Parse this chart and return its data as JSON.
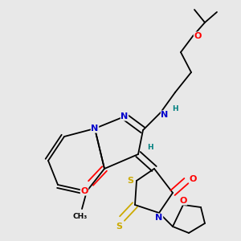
{
  "bg_color": "#e8e8e8",
  "atom_colors": {
    "C": "#000000",
    "N": "#0000cc",
    "O": "#ff0000",
    "S": "#ccaa00",
    "H": "#008080"
  },
  "figsize": [
    3.0,
    3.0
  ],
  "dpi": 100
}
